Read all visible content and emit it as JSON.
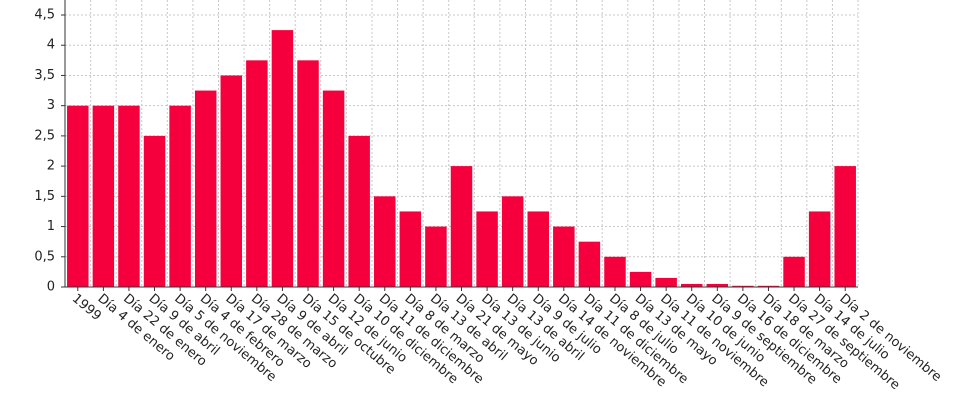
{
  "chart_data": {
    "type": "bar",
    "categories": [
      "1999",
      "Día 4 de enero",
      "Día 22 de enero",
      "Día 9 de abril",
      "Día 5 de noviembre",
      "Día 4 de febrero",
      "Día 17 de marzo",
      "Día 28 de marzo",
      "Día 9 de abril",
      "Día 15 de octubre",
      "Día 12 de junio",
      "Día 10 de diciembre",
      "Día 11 de diciembre",
      "Día 8 de marzo",
      "Día 13 de abril",
      "Día 21 de mayo",
      "Día 13 de junio",
      "Día 13 de abril",
      "Día 9 de julio",
      "Día 14 de noviembre",
      "Día 11 de diciembre",
      "Día 8 de julio",
      "Día 13 de mayo",
      "Día 11 de noviembre",
      "Día 10 de junio",
      "Día 9 de septiembre",
      "Día 16 de diciembre",
      "Día 18 de marzo",
      "Día 27 de septiembre",
      "Día 14 de julio",
      "Día 2 de noviembre"
    ],
    "values": [
      3,
      3,
      3,
      2.5,
      3,
      3.25,
      3.5,
      3.75,
      4.25,
      3.75,
      3.25,
      2.5,
      1.5,
      1.25,
      1,
      2,
      1.25,
      1.5,
      1.25,
      1,
      0.75,
      0.5,
      0.25,
      0.15,
      0.05,
      0.05,
      0.02,
      0.02,
      0.5,
      1.25,
      2
    ],
    "color": "#f5003c",
    "ylim": [
      0,
      4.5
    ],
    "yticks": [
      0,
      {
        "value": 0.5,
        "label": "0,5"
      },
      1,
      {
        "value": 1.5,
        "label": "1,5"
      },
      2,
      {
        "value": 2.5,
        "label": "2,5"
      },
      3,
      {
        "value": 3.5,
        "label": "3,5"
      },
      4,
      {
        "value": 4.5,
        "label": "4,5"
      }
    ],
    "grid": true
  }
}
